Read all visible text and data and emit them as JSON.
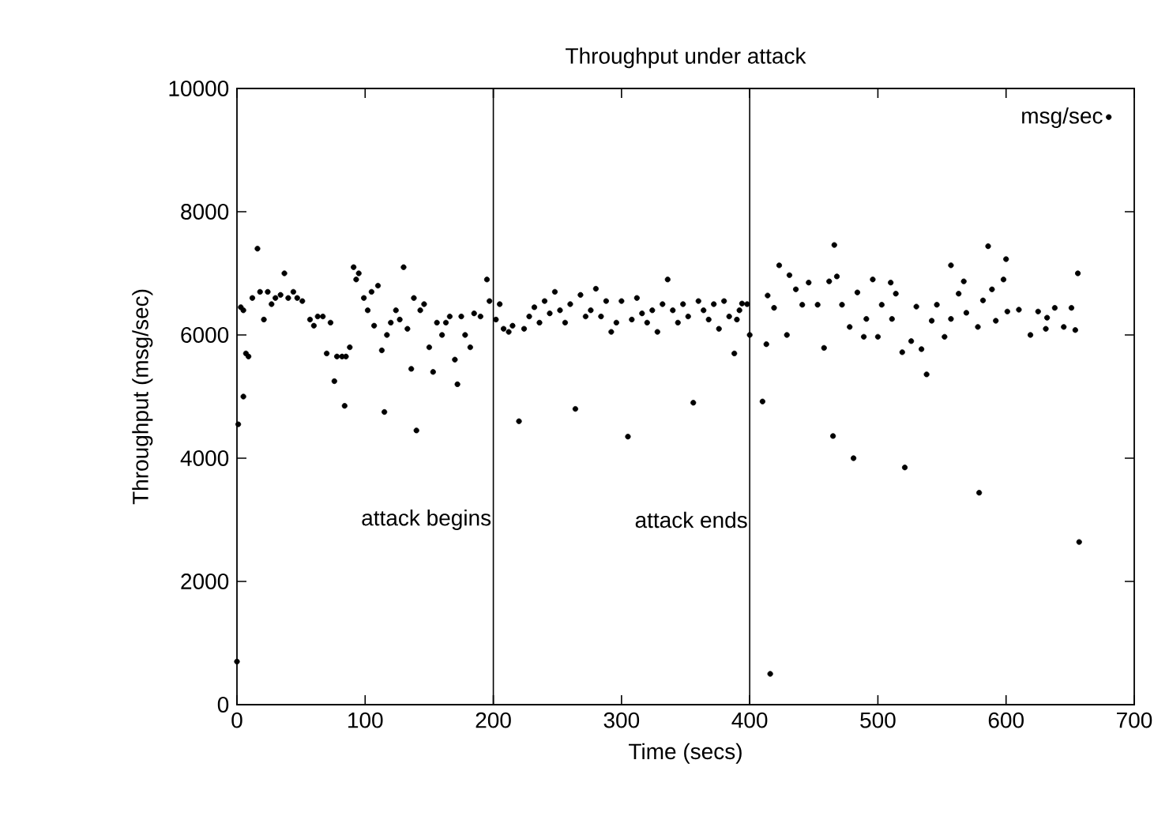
{
  "chart_data": {
    "type": "scatter",
    "title": "Throughput under attack",
    "xlabel": "Time (secs)",
    "ylabel": "Throughput (msg/sec)",
    "xlim": [
      0,
      700
    ],
    "xticks": [
      0,
      100,
      200,
      300,
      400,
      500,
      600,
      700
    ],
    "ylim": [
      0,
      10000
    ],
    "yticks": [
      0,
      2000,
      4000,
      6000,
      8000,
      10000
    ],
    "grid": false,
    "legend": "top right",
    "marker": "circle",
    "series": [
      {
        "name": "msg/sec",
        "color": "#000000",
        "x": [
          0,
          1,
          5,
          3,
          5,
          7,
          9,
          12,
          16,
          18,
          21,
          24,
          27,
          30,
          34,
          37,
          40,
          44,
          47,
          51,
          57,
          60,
          63,
          67,
          70,
          73,
          76,
          78,
          82,
          84,
          85,
          88,
          91,
          93,
          95,
          99,
          102,
          105,
          107,
          110,
          113,
          115,
          117,
          120,
          124,
          127,
          130,
          133,
          136,
          138,
          140,
          143,
          146,
          150,
          153,
          156,
          160,
          163,
          166,
          170,
          172,
          175,
          178,
          182,
          185,
          190,
          195,
          197,
          202,
          205,
          208,
          212,
          215,
          220,
          224,
          228,
          232,
          236,
          240,
          244,
          248,
          252,
          256,
          260,
          264,
          268,
          272,
          276,
          280,
          284,
          288,
          292,
          296,
          300,
          305,
          308,
          312,
          316,
          320,
          324,
          328,
          332,
          336,
          340,
          344,
          348,
          352,
          356,
          360,
          364,
          368,
          372,
          376,
          380,
          384,
          388,
          390,
          392,
          394,
          398,
          400,
          410,
          413,
          414,
          416,
          419,
          423,
          429,
          431,
          436,
          441,
          446,
          453,
          458,
          462,
          465,
          466,
          468,
          472,
          478,
          481,
          484,
          489,
          491,
          496,
          500,
          503,
          510,
          511,
          514,
          519,
          521,
          526,
          530,
          534,
          538,
          542,
          546,
          552,
          557,
          557,
          563,
          567,
          569,
          578,
          579,
          582,
          586,
          589,
          592,
          598,
          600,
          601,
          610,
          619,
          625,
          631,
          632,
          638,
          645,
          651,
          654,
          656,
          657
        ],
        "values": [
          700,
          4550,
          5000,
          6450,
          6400,
          5700,
          5650,
          6600,
          7400,
          6700,
          6250,
          6700,
          6500,
          6600,
          6650,
          7000,
          6600,
          6700,
          6600,
          6550,
          6250,
          6150,
          6300,
          6300,
          5700,
          6200,
          5250,
          5650,
          5650,
          4850,
          5650,
          5800,
          7100,
          6900,
          7000,
          6600,
          6400,
          6700,
          6150,
          6800,
          5750,
          4750,
          6000,
          6200,
          6400,
          6250,
          7100,
          6100,
          5450,
          6600,
          4450,
          6400,
          6500,
          5800,
          5400,
          6200,
          6000,
          6200,
          6300,
          5600,
          5200,
          6300,
          6000,
          5800,
          6350,
          6300,
          6900,
          6550,
          6250,
          6500,
          6100,
          6050,
          6150,
          4600,
          6100,
          6300,
          6450,
          6200,
          6550,
          6350,
          6700,
          6400,
          6200,
          6500,
          4800,
          6650,
          6300,
          6400,
          6750,
          6300,
          6550,
          6050,
          6200,
          6550,
          4350,
          6250,
          6600,
          6350,
          6200,
          6400,
          6050,
          6500,
          6900,
          6400,
          6200,
          6500,
          6300,
          4900,
          6550,
          6400,
          6250,
          6500,
          6100,
          6550,
          6300,
          5700,
          6250,
          6400,
          6510,
          6500,
          6000,
          4920,
          5850,
          6640,
          500,
          6440,
          7130,
          6000,
          6970,
          6740,
          6490,
          6850,
          6490,
          5790,
          6870,
          4360,
          7460,
          6950,
          6490,
          6130,
          4000,
          6690,
          5970,
          6260,
          6900,
          5970,
          6490,
          6850,
          6260,
          6670,
          5720,
          3850,
          5900,
          6460,
          5770,
          5360,
          6230,
          6490,
          5970,
          7130,
          6260,
          6670,
          6870,
          6360,
          6130,
          3440,
          6560,
          7440,
          6740,
          6230,
          6900,
          7230,
          6380,
          6410,
          6000,
          6380,
          6100,
          6280,
          6440,
          6130,
          6440,
          6080,
          7000,
          2640
        ]
      }
    ],
    "ref_lines": [
      {
        "axis": "x",
        "value": 200,
        "color": "#000000"
      },
      {
        "axis": "x",
        "value": 400,
        "color": "#000000"
      }
    ],
    "annotations": [
      "attack begins",
      "attack ends"
    ]
  }
}
